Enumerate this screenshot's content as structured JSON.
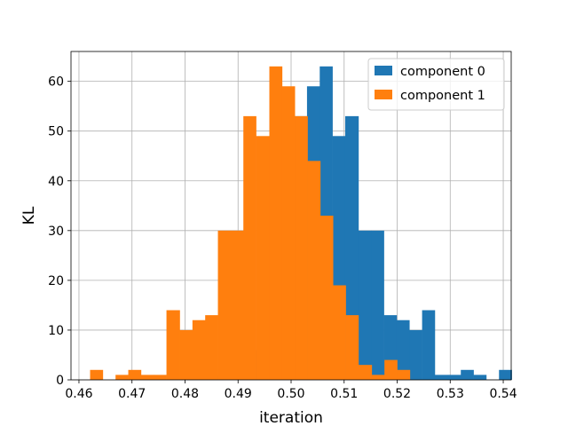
{
  "chart_data": {
    "type": "bar",
    "subtype": "histogram",
    "xlabel": "iteration",
    "ylabel": "KL",
    "xlim": [
      0.4585,
      0.5415
    ],
    "ylim": [
      0,
      66
    ],
    "xticks": [
      "0.46",
      "0.47",
      "0.48",
      "0.49",
      "0.50",
      "0.51",
      "0.52",
      "0.53",
      "0.54"
    ],
    "yticks": [
      "0",
      "10",
      "20",
      "30",
      "40",
      "50",
      "60"
    ],
    "grid": true,
    "legend_position": "top-right",
    "series": [
      {
        "name": "component 0",
        "color": "#1f77b4",
        "bins": [
          [
            0.4861,
            0.4885,
            1
          ],
          [
            0.4885,
            0.4909,
            2
          ],
          [
            0.4909,
            0.4933,
            3
          ],
          [
            0.4933,
            0.4958,
            6
          ],
          [
            0.4958,
            0.4982,
            15
          ],
          [
            0.4982,
            0.5006,
            34
          ],
          [
            0.5006,
            0.503,
            53
          ],
          [
            0.503,
            0.5054,
            59
          ],
          [
            0.5054,
            0.5078,
            63
          ],
          [
            0.5078,
            0.5102,
            49
          ],
          [
            0.5102,
            0.5127,
            53
          ],
          [
            0.5127,
            0.5151,
            30
          ],
          [
            0.5151,
            0.5175,
            30
          ],
          [
            0.5175,
            0.5199,
            13
          ],
          [
            0.5199,
            0.5223,
            12
          ],
          [
            0.5223,
            0.5247,
            10
          ],
          [
            0.5247,
            0.5271,
            14
          ],
          [
            0.5271,
            0.5296,
            1
          ],
          [
            0.5296,
            0.532,
            1
          ],
          [
            0.532,
            0.5344,
            2
          ],
          [
            0.5344,
            0.5368,
            1
          ],
          [
            0.5368,
            0.5392,
            0
          ],
          [
            0.5392,
            0.5416,
            2
          ]
        ]
      },
      {
        "name": "component 1",
        "color": "#ff7f0e",
        "bins": [
          [
            0.4621,
            0.4645,
            2
          ],
          [
            0.4645,
            0.4669,
            0
          ],
          [
            0.4669,
            0.4693,
            1
          ],
          [
            0.4693,
            0.4717,
            2
          ],
          [
            0.4717,
            0.4741,
            1
          ],
          [
            0.4741,
            0.4765,
            1
          ],
          [
            0.4765,
            0.479,
            14
          ],
          [
            0.479,
            0.4814,
            10
          ],
          [
            0.4814,
            0.4838,
            12
          ],
          [
            0.4838,
            0.4862,
            13
          ],
          [
            0.4862,
            0.4886,
            30
          ],
          [
            0.4886,
            0.491,
            30
          ],
          [
            0.491,
            0.4934,
            53
          ],
          [
            0.4934,
            0.4959,
            49
          ],
          [
            0.4959,
            0.4983,
            63
          ],
          [
            0.4983,
            0.5007,
            59
          ],
          [
            0.5007,
            0.5031,
            53
          ],
          [
            0.5031,
            0.5055,
            44
          ],
          [
            0.5055,
            0.5079,
            33
          ],
          [
            0.5079,
            0.5103,
            19
          ],
          [
            0.5103,
            0.5127,
            13
          ],
          [
            0.5127,
            0.5152,
            3
          ],
          [
            0.5152,
            0.5176,
            1
          ],
          [
            0.5176,
            0.52,
            4
          ],
          [
            0.52,
            0.5224,
            2
          ]
        ]
      }
    ]
  }
}
